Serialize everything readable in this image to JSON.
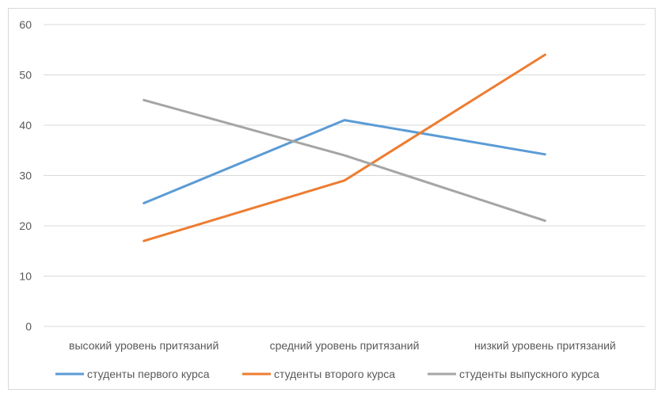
{
  "chart_data": {
    "type": "line",
    "categories": [
      "высокий уровень притязаний",
      "средний уровень притязаний",
      "низкий уровень притязаний"
    ],
    "series": [
      {
        "name": "студенты первого курса",
        "values": [
          24.5,
          41,
          34.2
        ],
        "color": "#5b9bd5"
      },
      {
        "name": "студенты второго курса",
        "values": [
          17,
          29,
          54
        ],
        "color": "#ed7d31"
      },
      {
        "name": "студенты выпускного курса",
        "values": [
          45,
          34,
          21
        ],
        "color": "#a5a5a5"
      }
    ],
    "yticks": [
      "0",
      "10",
      "20",
      "30",
      "40",
      "50",
      "60"
    ],
    "ylim": [
      0,
      60
    ],
    "grid": true,
    "legend_position": "bottom"
  }
}
